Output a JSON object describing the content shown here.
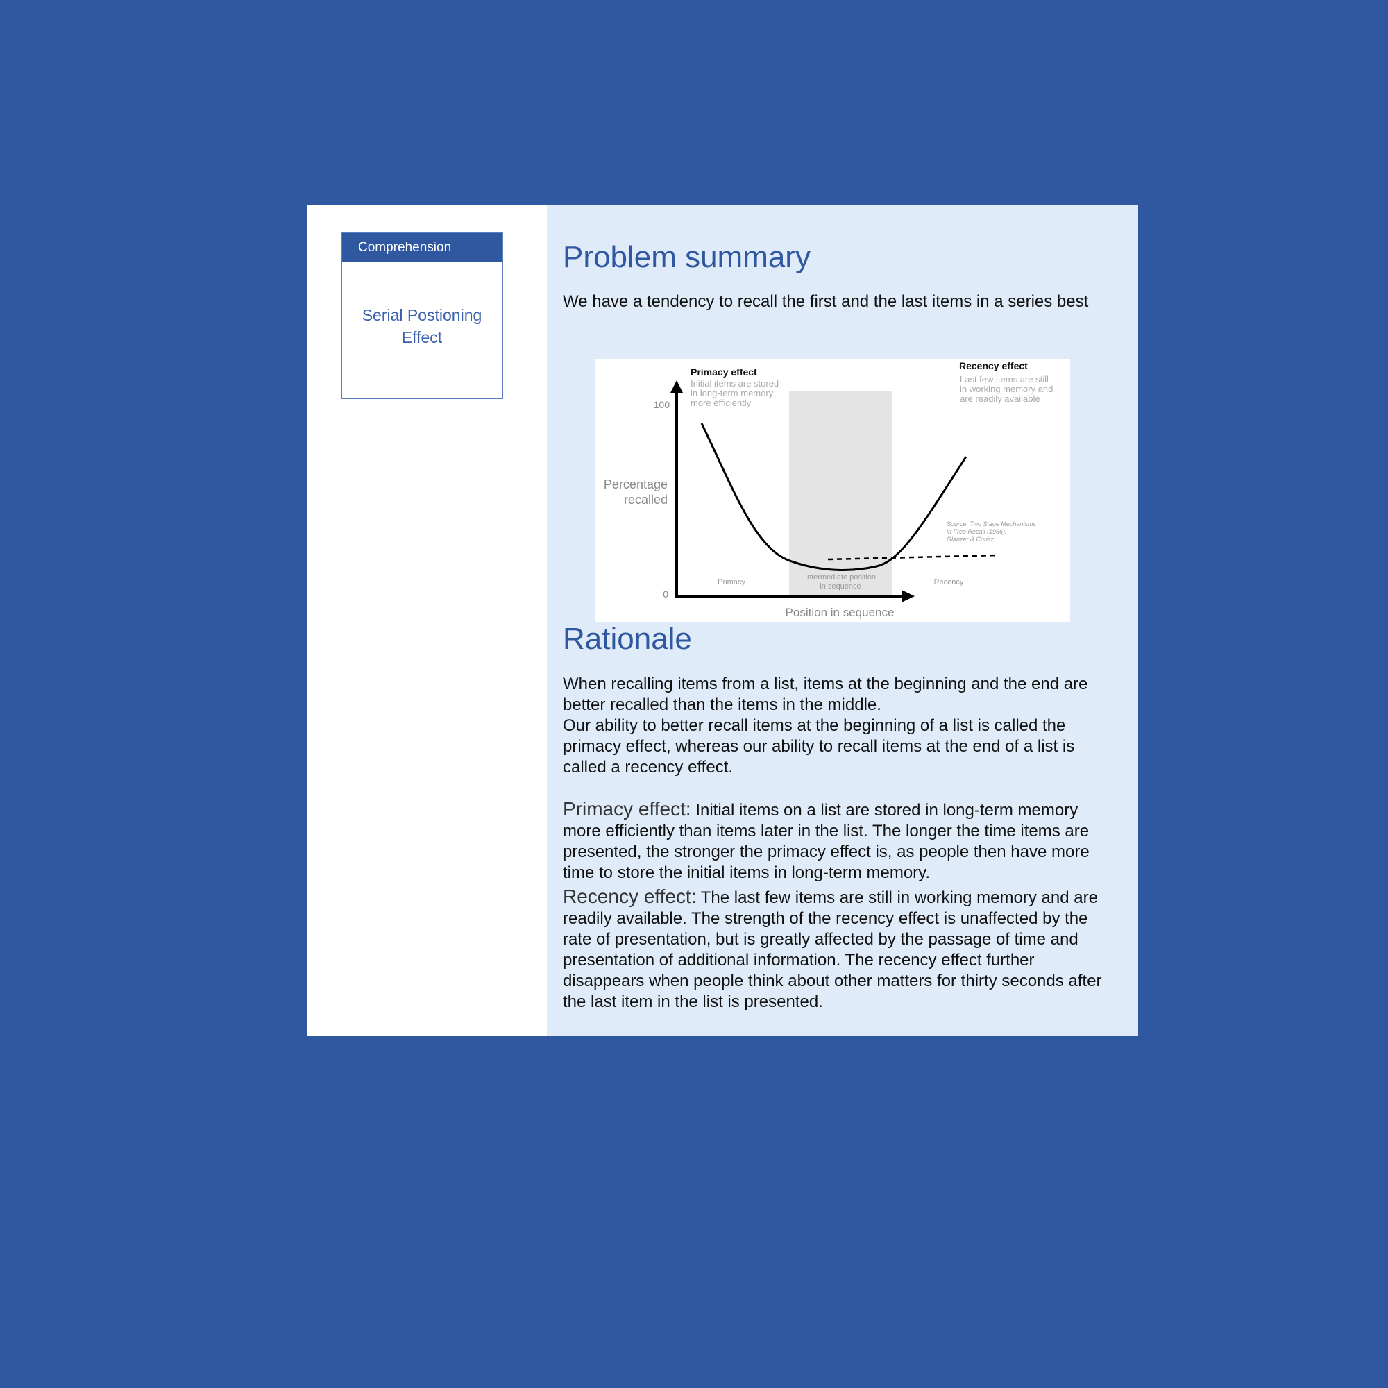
{
  "sidebar": {
    "category": "Comprehension",
    "title": "Serial Postioning Effect"
  },
  "problem": {
    "heading": "Problem summary",
    "text": "We have a tendency to recall the first and the last items in a series best"
  },
  "figure": {
    "y_label_line1": "Percentage",
    "y_label_line2": "recalled",
    "x_label": "Position in sequence",
    "tick_100": "100",
    "tick_0": "0",
    "primacy_title": "Primacy effect",
    "primacy_desc": [
      "Initial items are stored",
      "in long-term memory",
      "more efficiently"
    ],
    "recency_title": "Recency effect",
    "recency_desc": [
      "Last few items are still",
      "in working memory and",
      "are readily available"
    ],
    "source": [
      "Source: Two Stage Mechanisms",
      "in Free Recall (1966),",
      "Glanzer & Cunitz"
    ],
    "zone_primacy": "Primacy",
    "zone_intermediate": [
      "Intermediate position",
      "in sequence"
    ],
    "zone_recency": "Recency"
  },
  "rationale": {
    "heading": "Rationale",
    "para1": "When recalling items from a list, items at the beginning and the end are better recalled than the items in the middle.",
    "para2": "Our ability to better recall items at the beginning of a list is called the primacy effect, whereas our ability to recall items at the end of a list is called a recency effect.",
    "primacy_term": "Primacy effect:",
    "primacy_text": "Initial items on a list are stored in long-term memory more efficiently than items later in the list. The longer the time items are presented, the stronger the primacy effect is, as people then have more time to store the initial items in long-term memory.",
    "recency_term": "Recency effect:",
    "recency_text": "The last few items are still in working memory and are readily available. The strength of the recency effect is unaffected by the rate of presentation, but is greatly affected by the passage of time and presentation of additional information. The recency effect further disappears when people think about other matters for thirty seconds after the last item in the list is presented."
  }
}
